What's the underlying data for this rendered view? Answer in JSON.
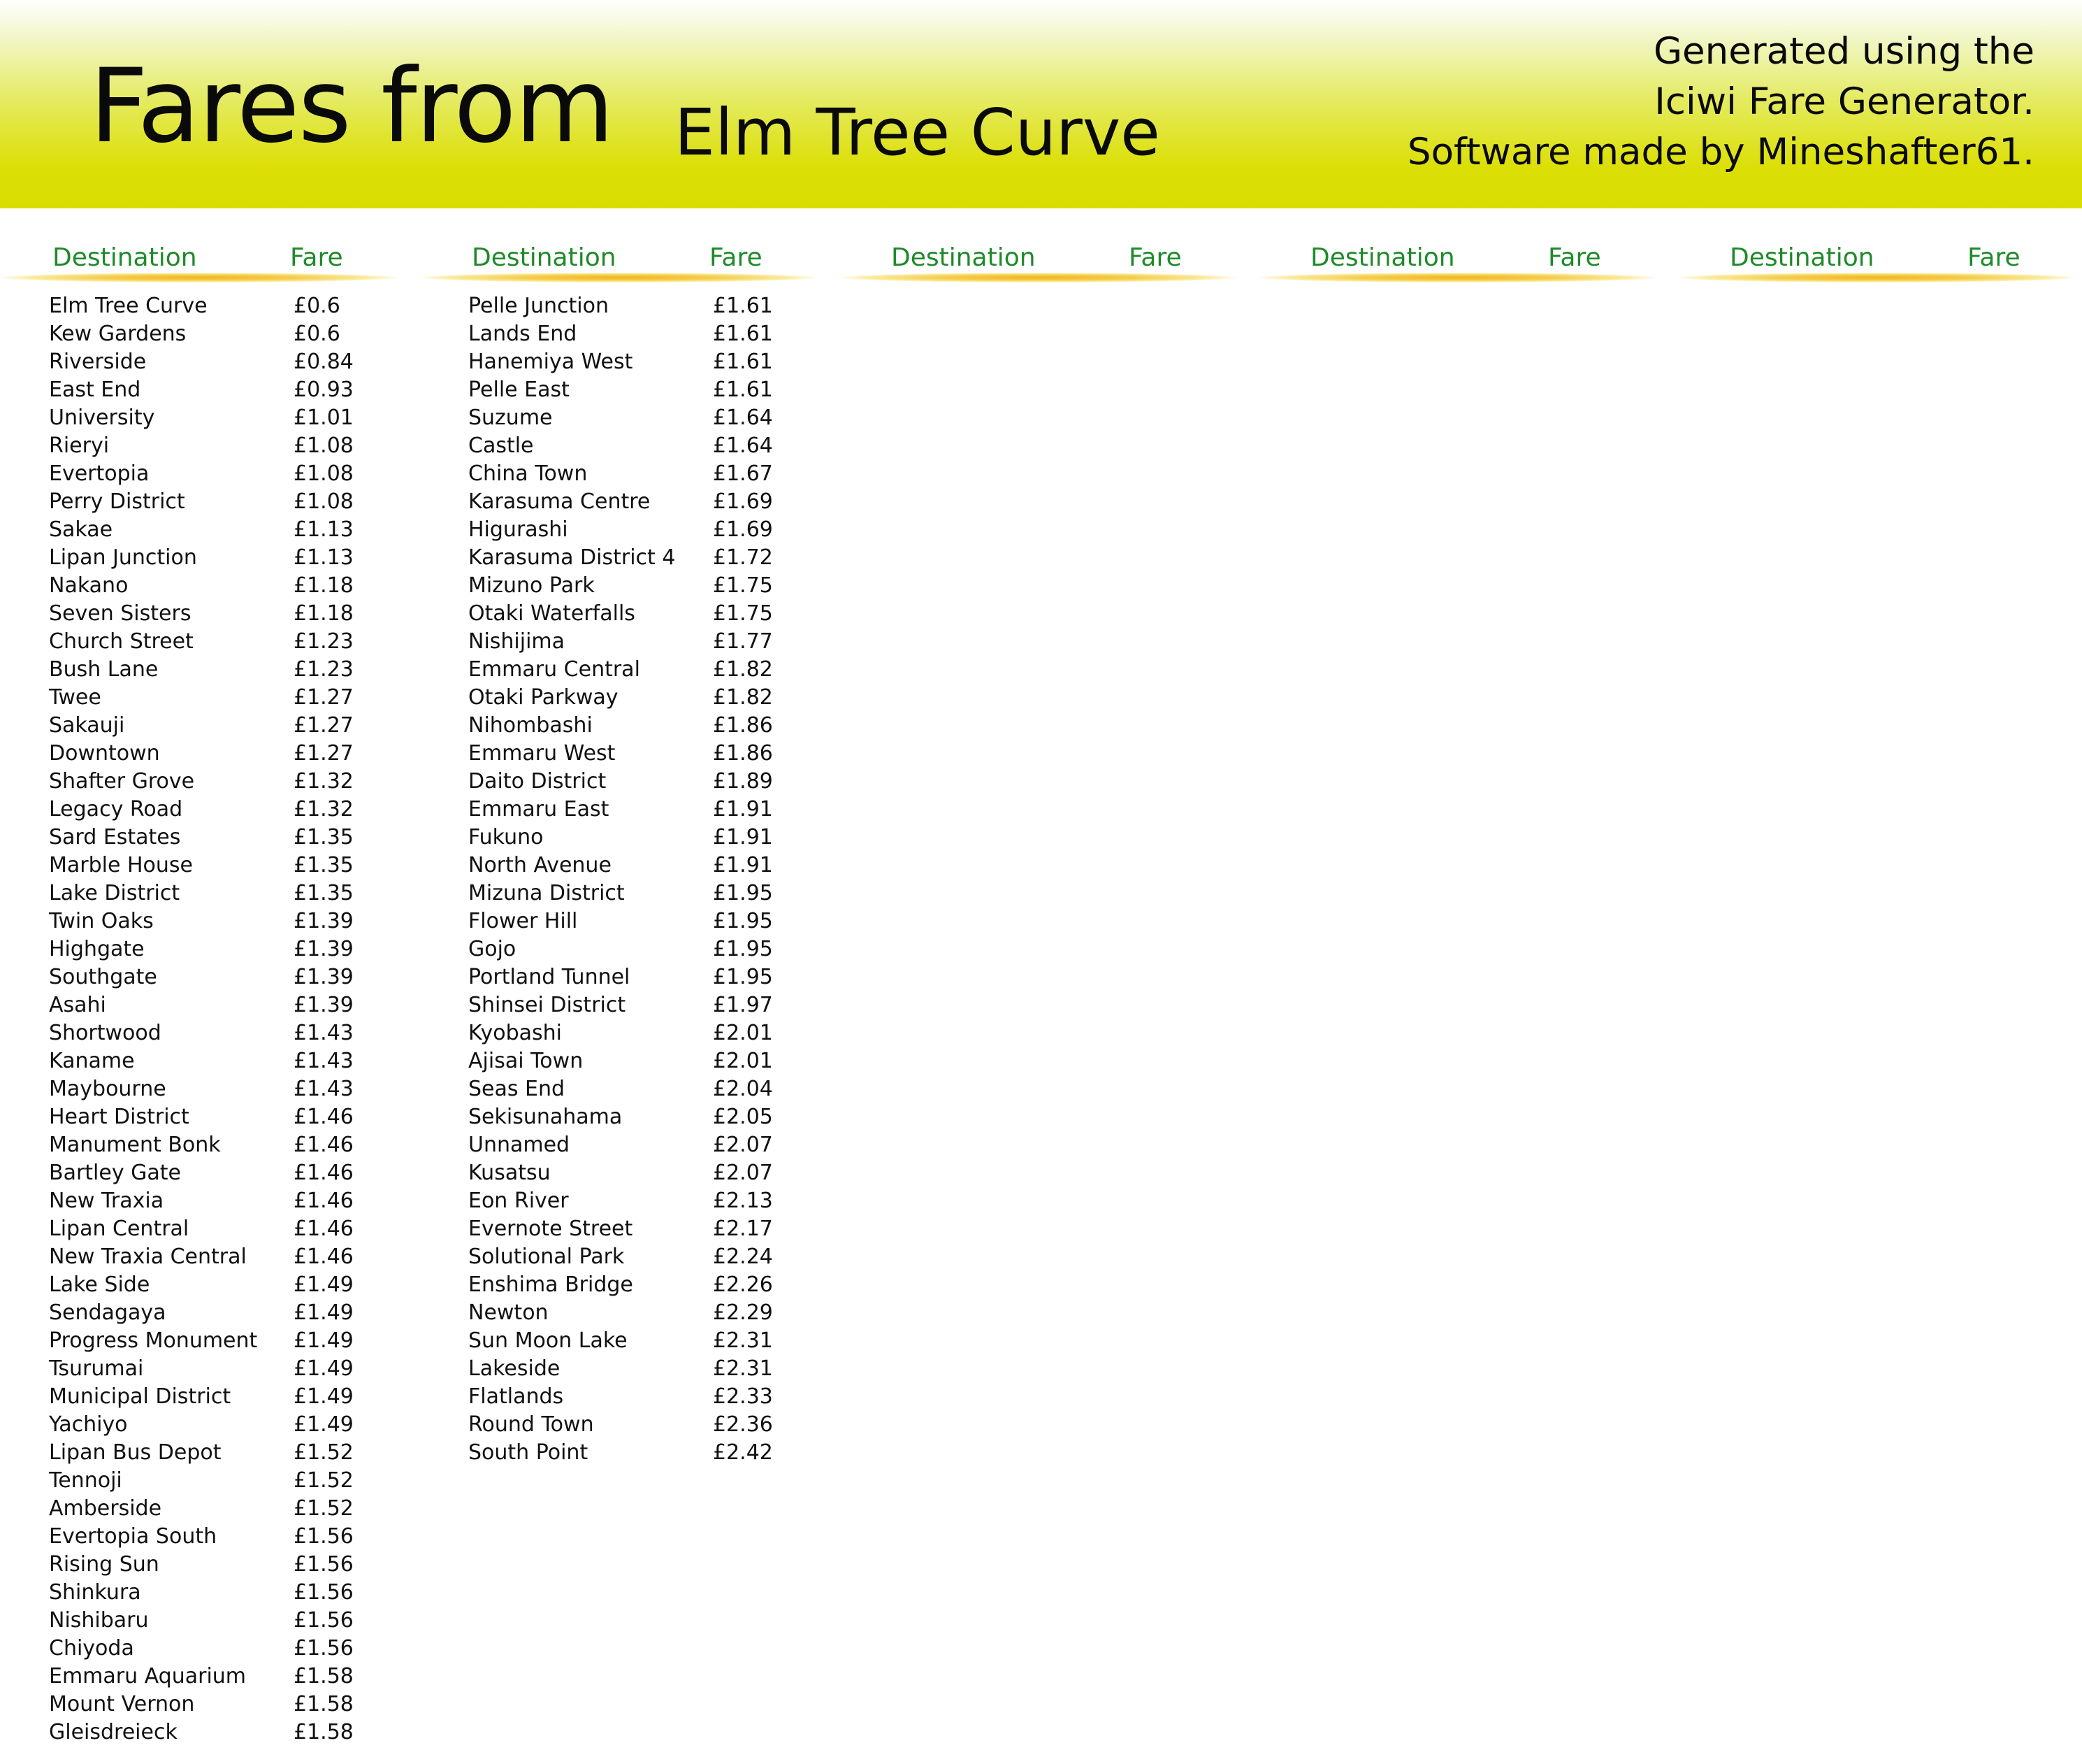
{
  "header": {
    "title": "Fares from",
    "station": "Elm Tree Curve",
    "credit_lines": [
      "Generated using the",
      "Iciwi Fare Generator.",
      "Software made by Mineshafter61."
    ]
  },
  "colors": {
    "header_gradient_bottom": "#d9dd00",
    "column_header_text": "#1f8a2a",
    "column_rule": "#f2b417"
  },
  "columns": [
    {
      "dest_label": "Destination",
      "fare_label": "Fare",
      "rows": [
        {
          "name": "Elm Tree Curve",
          "fare": "£0.6"
        },
        {
          "name": "Kew Gardens",
          "fare": "£0.6"
        },
        {
          "name": "Riverside",
          "fare": "£0.84"
        },
        {
          "name": "East End",
          "fare": "£0.93"
        },
        {
          "name": "University",
          "fare": "£1.01"
        },
        {
          "name": "Rieryi",
          "fare": "£1.08"
        },
        {
          "name": "Evertopia",
          "fare": "£1.08"
        },
        {
          "name": "Perry District",
          "fare": "£1.08"
        },
        {
          "name": "Sakae",
          "fare": "£1.13"
        },
        {
          "name": "Lipan Junction",
          "fare": "£1.13"
        },
        {
          "name": "Nakano",
          "fare": "£1.18"
        },
        {
          "name": "Seven Sisters",
          "fare": "£1.18"
        },
        {
          "name": "Church Street",
          "fare": "£1.23"
        },
        {
          "name": "Bush Lane",
          "fare": "£1.23"
        },
        {
          "name": "Twee",
          "fare": "£1.27"
        },
        {
          "name": "Sakauji",
          "fare": "£1.27"
        },
        {
          "name": "Downtown",
          "fare": "£1.27"
        },
        {
          "name": "Shafter Grove",
          "fare": "£1.32"
        },
        {
          "name": "Legacy Road",
          "fare": "£1.32"
        },
        {
          "name": "Sard Estates",
          "fare": "£1.35"
        },
        {
          "name": "Marble House",
          "fare": "£1.35"
        },
        {
          "name": "Lake District",
          "fare": "£1.35"
        },
        {
          "name": "Twin Oaks",
          "fare": "£1.39"
        },
        {
          "name": "Highgate",
          "fare": "£1.39"
        },
        {
          "name": "Southgate",
          "fare": "£1.39"
        },
        {
          "name": "Asahi",
          "fare": "£1.39"
        },
        {
          "name": "Shortwood",
          "fare": "£1.43"
        },
        {
          "name": "Kaname",
          "fare": "£1.43"
        },
        {
          "name": "Maybourne",
          "fare": "£1.43"
        },
        {
          "name": "Heart District",
          "fare": "£1.46"
        },
        {
          "name": "Manument Bonk",
          "fare": "£1.46"
        },
        {
          "name": "Bartley Gate",
          "fare": "£1.46"
        },
        {
          "name": "New Traxia",
          "fare": "£1.46"
        },
        {
          "name": "Lipan Central",
          "fare": "£1.46"
        },
        {
          "name": "New Traxia Central",
          "fare": "£1.46"
        },
        {
          "name": "Lake Side",
          "fare": "£1.49"
        },
        {
          "name": "Sendagaya",
          "fare": "£1.49"
        },
        {
          "name": "Progress Monument",
          "fare": "£1.49"
        },
        {
          "name": "Tsurumai",
          "fare": "£1.49"
        },
        {
          "name": "Municipal District",
          "fare": "£1.49"
        },
        {
          "name": "Yachiyo",
          "fare": "£1.49"
        },
        {
          "name": "Lipan Bus Depot",
          "fare": "£1.52"
        },
        {
          "name": "Tennoji",
          "fare": "£1.52"
        },
        {
          "name": "Amberside",
          "fare": "£1.52"
        },
        {
          "name": "Evertopia South",
          "fare": "£1.56"
        },
        {
          "name": "Rising Sun",
          "fare": "£1.56"
        },
        {
          "name": "Shinkura",
          "fare": "£1.56"
        },
        {
          "name": "Nishibaru",
          "fare": "£1.56"
        },
        {
          "name": "Chiyoda",
          "fare": "£1.56"
        },
        {
          "name": "Emmaru Aquarium",
          "fare": "£1.58"
        },
        {
          "name": "Mount Vernon",
          "fare": "£1.58"
        },
        {
          "name": "Gleisdreieck",
          "fare": "£1.58"
        }
      ]
    },
    {
      "dest_label": "Destination",
      "fare_label": "Fare",
      "rows": [
        {
          "name": "Pelle Junction",
          "fare": "£1.61"
        },
        {
          "name": "Lands End",
          "fare": "£1.61"
        },
        {
          "name": "Hanemiya West",
          "fare": "£1.61"
        },
        {
          "name": "Pelle East",
          "fare": "£1.61"
        },
        {
          "name": "Suzume",
          "fare": "£1.64"
        },
        {
          "name": "Castle",
          "fare": "£1.64"
        },
        {
          "name": "China Town",
          "fare": "£1.67"
        },
        {
          "name": "Karasuma Centre",
          "fare": "£1.69"
        },
        {
          "name": "Higurashi",
          "fare": "£1.69"
        },
        {
          "name": "Karasuma District 4",
          "fare": "£1.72"
        },
        {
          "name": "Mizuno Park",
          "fare": "£1.75"
        },
        {
          "name": "Otaki Waterfalls",
          "fare": "£1.75"
        },
        {
          "name": "Nishijima",
          "fare": "£1.77"
        },
        {
          "name": "Emmaru Central",
          "fare": "£1.82"
        },
        {
          "name": "Otaki Parkway",
          "fare": "£1.82"
        },
        {
          "name": "Nihombashi",
          "fare": "£1.86"
        },
        {
          "name": "Emmaru West",
          "fare": "£1.86"
        },
        {
          "name": "Daito District",
          "fare": "£1.89"
        },
        {
          "name": "Emmaru East",
          "fare": "£1.91"
        },
        {
          "name": "Fukuno",
          "fare": "£1.91"
        },
        {
          "name": "North Avenue",
          "fare": "£1.91"
        },
        {
          "name": "Mizuna District",
          "fare": "£1.95"
        },
        {
          "name": "Flower Hill",
          "fare": "£1.95"
        },
        {
          "name": "Gojo",
          "fare": "£1.95"
        },
        {
          "name": "Portland Tunnel",
          "fare": "£1.95"
        },
        {
          "name": "Shinsei District",
          "fare": "£1.97"
        },
        {
          "name": "Kyobashi",
          "fare": "£2.01"
        },
        {
          "name": "Ajisai Town",
          "fare": "£2.01"
        },
        {
          "name": "Seas End",
          "fare": "£2.04"
        },
        {
          "name": "Sekisunahama",
          "fare": "£2.05"
        },
        {
          "name": "Unnamed",
          "fare": "£2.07"
        },
        {
          "name": "Kusatsu",
          "fare": "£2.07"
        },
        {
          "name": "Eon River",
          "fare": "£2.13"
        },
        {
          "name": "Evernote Street",
          "fare": "£2.17"
        },
        {
          "name": "Solutional Park",
          "fare": "£2.24"
        },
        {
          "name": "Enshima Bridge",
          "fare": "£2.26"
        },
        {
          "name": "Newton",
          "fare": "£2.29"
        },
        {
          "name": "Sun Moon Lake",
          "fare": "£2.31"
        },
        {
          "name": "Lakeside",
          "fare": "£2.31"
        },
        {
          "name": "Flatlands",
          "fare": "£2.33"
        },
        {
          "name": "Round Town",
          "fare": "£2.36"
        },
        {
          "name": "South Point",
          "fare": "£2.42"
        }
      ]
    },
    {
      "dest_label": "Destination",
      "fare_label": "Fare",
      "rows": []
    },
    {
      "dest_label": "Destination",
      "fare_label": "Fare",
      "rows": []
    },
    {
      "dest_label": "Destination",
      "fare_label": "Fare",
      "rows": []
    }
  ]
}
